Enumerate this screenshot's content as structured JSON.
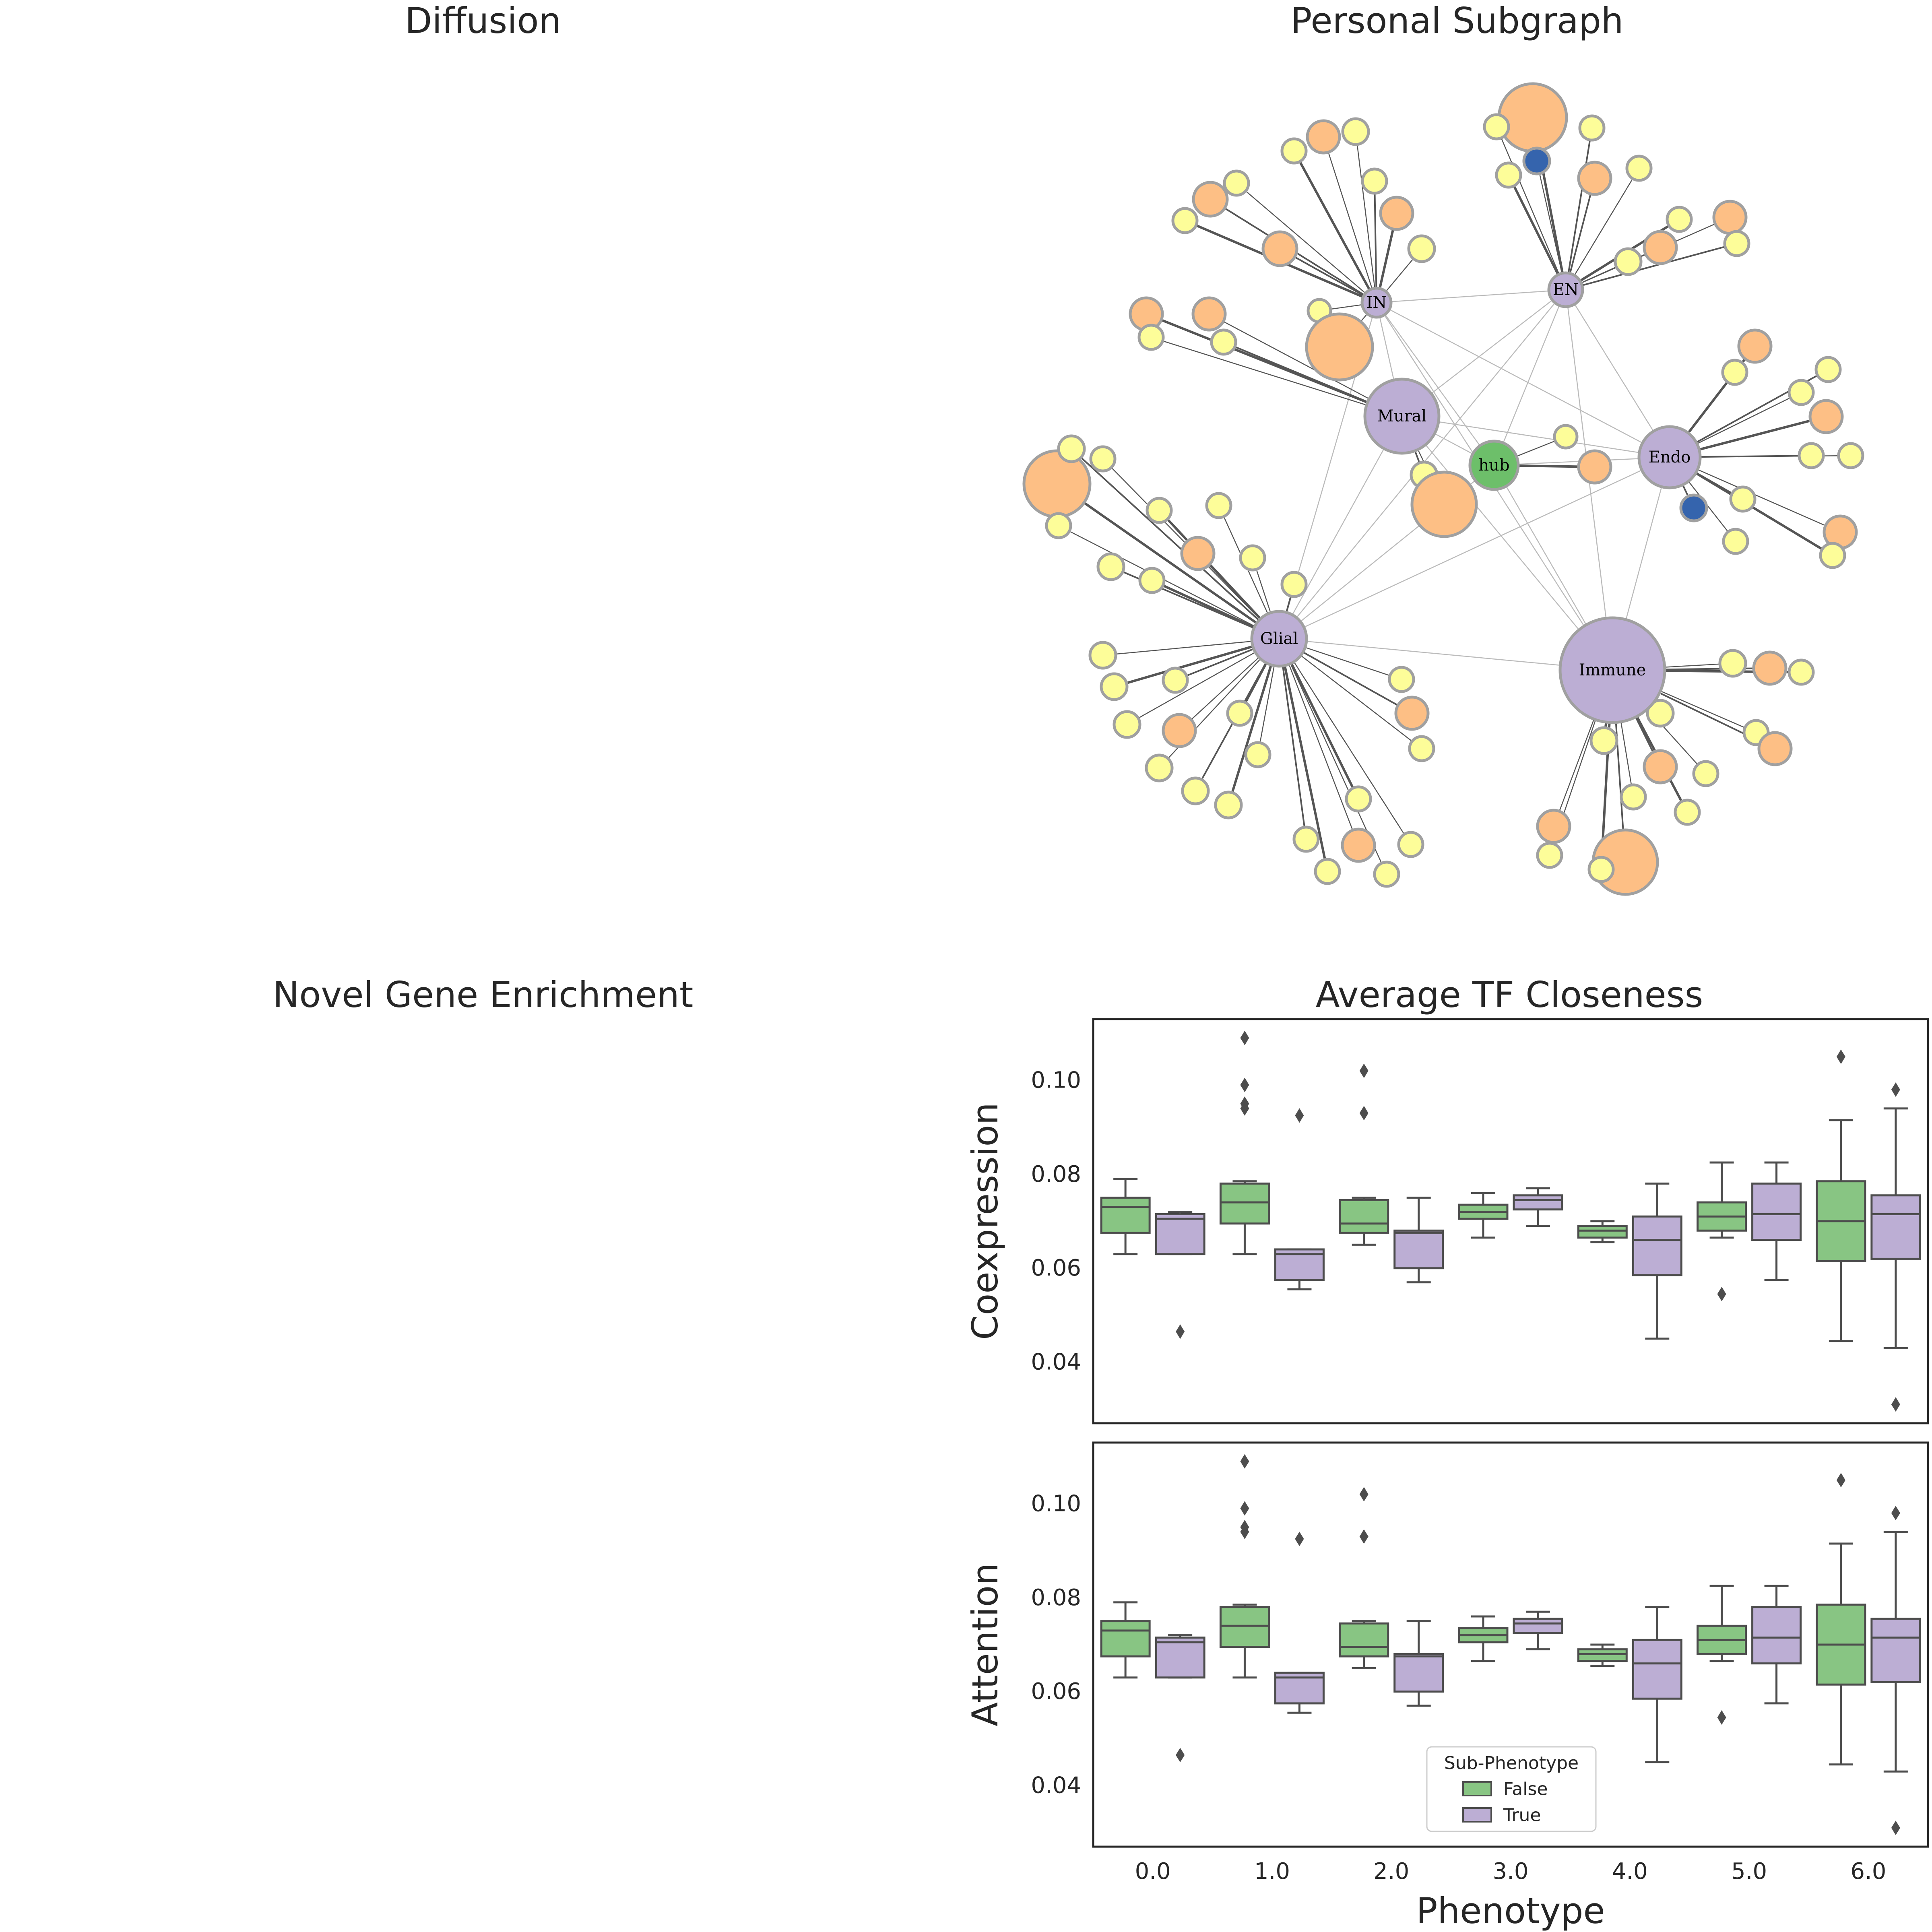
{
  "titles": {
    "diffusion": "Diffusion",
    "subgraph": "Personal Subgraph",
    "novel": "Novel Gene Enrichment",
    "tf": "Average TF Closeness"
  },
  "colors": {
    "cell_type": "#bcaed4",
    "hub": "#6dbf6a",
    "gene_orange": "#fdbf85",
    "gene_yellow": "#fdfd99",
    "gene_blue": "#3564ad",
    "box_false": "#88c583",
    "box_true": "#bcaed4",
    "edge": "#555555"
  },
  "graph": {
    "labels": [
      "IN",
      "EN",
      "Mural",
      "hub",
      "Endo",
      "Glial",
      "Immune"
    ]
  },
  "chart_data": {
    "type": "box",
    "xlabel": "Phenotype",
    "categories": [
      "0.0",
      "1.0",
      "2.0",
      "3.0",
      "4.0",
      "5.0",
      "6.0"
    ],
    "legend": {
      "title": "Sub-Phenotype",
      "entries": [
        "False",
        "True"
      ],
      "position": "lower-center"
    },
    "yticks": [
      "0.04",
      "0.06",
      "0.08",
      "0.10"
    ],
    "ylim": [
      0.027,
      0.113
    ],
    "panels": [
      {
        "ylabel": "Coexpression",
        "series": [
          {
            "name": "False",
            "boxes": [
              {
                "whislo": 0.063,
                "q1": 0.0675,
                "med": 0.073,
                "q3": 0.075,
                "whishi": 0.079,
                "fliers": []
              },
              {
                "whislo": 0.063,
                "q1": 0.0695,
                "med": 0.074,
                "q3": 0.078,
                "whishi": 0.0785,
                "fliers": [
                  0.094,
                  0.095,
                  0.099,
                  0.109
                ]
              },
              {
                "whislo": 0.065,
                "q1": 0.0675,
                "med": 0.0695,
                "q3": 0.0745,
                "whishi": 0.075,
                "fliers": [
                  0.093,
                  0.102
                ]
              },
              {
                "whislo": 0.0665,
                "q1": 0.0705,
                "med": 0.072,
                "q3": 0.0735,
                "whishi": 0.076,
                "fliers": []
              },
              {
                "whislo": 0.0655,
                "q1": 0.0665,
                "med": 0.068,
                "q3": 0.069,
                "whishi": 0.07,
                "fliers": []
              },
              {
                "whislo": 0.0665,
                "q1": 0.068,
                "med": 0.071,
                "q3": 0.074,
                "whishi": 0.0825,
                "fliers": [
                  0.0545
                ]
              },
              {
                "whislo": 0.0445,
                "q1": 0.0615,
                "med": 0.07,
                "q3": 0.0785,
                "whishi": 0.0915,
                "fliers": [
                  0.105
                ]
              }
            ]
          },
          {
            "name": "True",
            "boxes": [
              {
                "whislo": 0.063,
                "q1": 0.063,
                "med": 0.0705,
                "q3": 0.0715,
                "whishi": 0.072,
                "fliers": [
                  0.0465
                ]
              },
              {
                "whislo": 0.0555,
                "q1": 0.0575,
                "med": 0.063,
                "q3": 0.064,
                "whishi": 0.064,
                "fliers": [
                  0.0925
                ]
              },
              {
                "whislo": 0.057,
                "q1": 0.06,
                "med": 0.0675,
                "q3": 0.068,
                "whishi": 0.075,
                "fliers": []
              },
              {
                "whislo": 0.069,
                "q1": 0.0725,
                "med": 0.0745,
                "q3": 0.0755,
                "whishi": 0.077,
                "fliers": []
              },
              {
                "whislo": 0.045,
                "q1": 0.0585,
                "med": 0.066,
                "q3": 0.071,
                "whishi": 0.078,
                "fliers": []
              },
              {
                "whislo": 0.0575,
                "q1": 0.066,
                "med": 0.0715,
                "q3": 0.078,
                "whishi": 0.0825,
                "fliers": []
              },
              {
                "whislo": 0.043,
                "q1": 0.062,
                "med": 0.0715,
                "q3": 0.0755,
                "whishi": 0.094,
                "fliers": [
                  0.098,
                  0.031
                ]
              }
            ]
          }
        ]
      },
      {
        "ylabel": "Attention",
        "series": [
          {
            "name": "False",
            "boxes": [
              {
                "whislo": 0.063,
                "q1": 0.0675,
                "med": 0.073,
                "q3": 0.075,
                "whishi": 0.079,
                "fliers": []
              },
              {
                "whislo": 0.063,
                "q1": 0.0695,
                "med": 0.074,
                "q3": 0.078,
                "whishi": 0.0785,
                "fliers": [
                  0.094,
                  0.095,
                  0.099,
                  0.109
                ]
              },
              {
                "whislo": 0.065,
                "q1": 0.0675,
                "med": 0.0695,
                "q3": 0.0745,
                "whishi": 0.075,
                "fliers": [
                  0.093,
                  0.102
                ]
              },
              {
                "whislo": 0.0665,
                "q1": 0.0705,
                "med": 0.072,
                "q3": 0.0735,
                "whishi": 0.076,
                "fliers": []
              },
              {
                "whislo": 0.0655,
                "q1": 0.0665,
                "med": 0.068,
                "q3": 0.069,
                "whishi": 0.07,
                "fliers": []
              },
              {
                "whislo": 0.0665,
                "q1": 0.068,
                "med": 0.071,
                "q3": 0.074,
                "whishi": 0.0825,
                "fliers": [
                  0.0545
                ]
              },
              {
                "whislo": 0.0445,
                "q1": 0.0615,
                "med": 0.07,
                "q3": 0.0785,
                "whishi": 0.0915,
                "fliers": [
                  0.105
                ]
              }
            ]
          },
          {
            "name": "True",
            "boxes": [
              {
                "whislo": 0.063,
                "q1": 0.063,
                "med": 0.0705,
                "q3": 0.0715,
                "whishi": 0.072,
                "fliers": [
                  0.0465
                ]
              },
              {
                "whislo": 0.0555,
                "q1": 0.0575,
                "med": 0.063,
                "q3": 0.064,
                "whishi": 0.064,
                "fliers": [
                  0.0925
                ]
              },
              {
                "whislo": 0.057,
                "q1": 0.06,
                "med": 0.0675,
                "q3": 0.068,
                "whishi": 0.075,
                "fliers": []
              },
              {
                "whislo": 0.069,
                "q1": 0.0725,
                "med": 0.0745,
                "q3": 0.0755,
                "whishi": 0.077,
                "fliers": []
              },
              {
                "whislo": 0.045,
                "q1": 0.0585,
                "med": 0.066,
                "q3": 0.071,
                "whishi": 0.078,
                "fliers": []
              },
              {
                "whislo": 0.0575,
                "q1": 0.066,
                "med": 0.0715,
                "q3": 0.078,
                "whishi": 0.0825,
                "fliers": []
              },
              {
                "whislo": 0.043,
                "q1": 0.062,
                "med": 0.0715,
                "q3": 0.0755,
                "whishi": 0.094,
                "fliers": [
                  0.098,
                  0.031
                ]
              }
            ]
          }
        ]
      }
    ]
  }
}
